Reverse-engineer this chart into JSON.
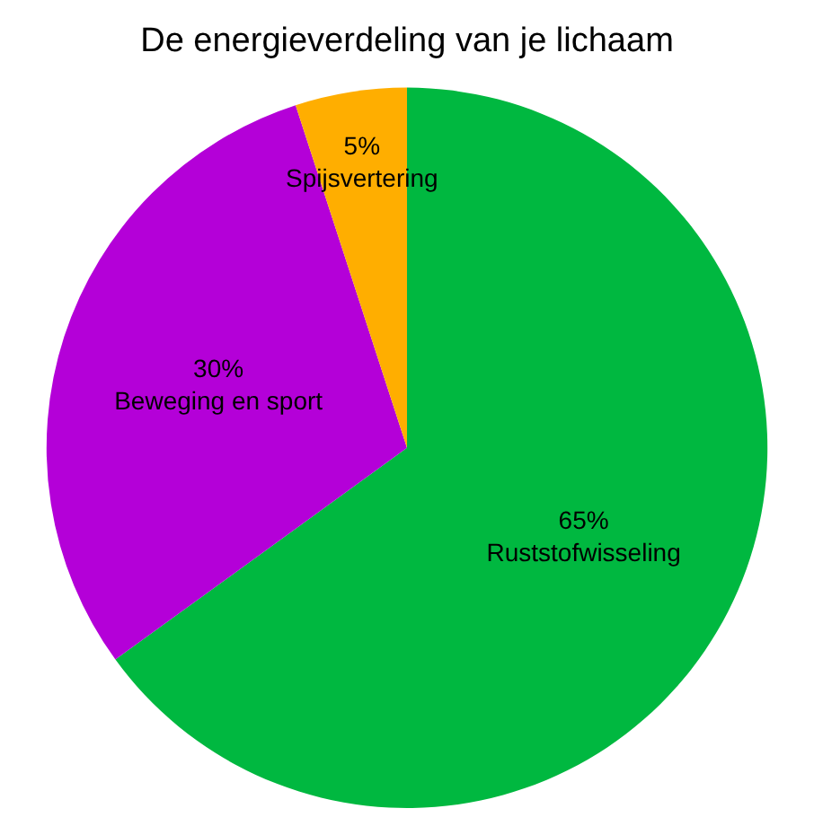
{
  "chart_data": {
    "type": "pie",
    "title": "De energieverdeling van je lichaam",
    "categories": [
      "Ruststofwisseling",
      "Beweging en sport",
      "Spijsvertering"
    ],
    "values": [
      65,
      30,
      5
    ],
    "value_labels": [
      "65%",
      "30%",
      "5%"
    ],
    "colors": [
      "#00b840",
      "#b400d8",
      "#ffae00"
    ],
    "legend": false
  }
}
